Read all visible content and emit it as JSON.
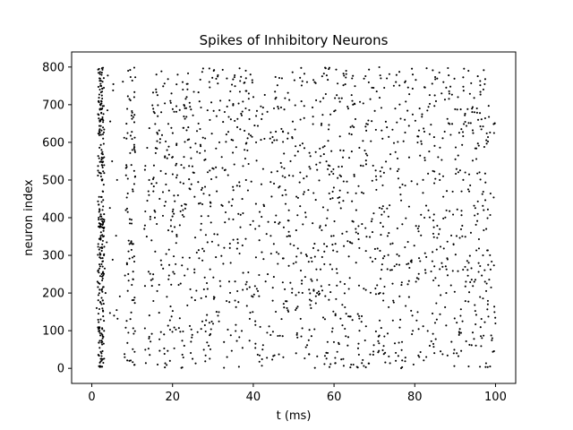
{
  "chart_data": {
    "type": "scatter",
    "title": "Spikes of Inhibitory Neurons",
    "xlabel": "t (ms)",
    "ylabel": "neuron index",
    "xlim": [
      -5,
      105
    ],
    "ylim": [
      -40,
      840
    ],
    "xticks": [
      0,
      20,
      40,
      60,
      80,
      100
    ],
    "yticks": [
      0,
      100,
      200,
      300,
      400,
      500,
      600,
      700,
      800
    ],
    "grid": false,
    "marker_color": "#000000",
    "num_neurons": 800,
    "t_range": [
      0,
      100
    ],
    "series": [
      {
        "x": [
          1.8,
          1.9,
          2.0,
          2.1,
          2.2,
          2.3,
          2.4,
          2.5,
          2.6,
          2.7,
          2.8,
          1.7,
          2.9,
          1.6,
          3.0,
          3.2,
          1.4,
          3.4,
          1.2,
          2.2,
          1.9,
          2.6,
          2.4,
          2.0,
          2.8,
          1.8,
          2.3,
          2.5,
          2.1,
          2.7,
          9.0,
          10.5,
          8.6,
          9.8,
          10.2,
          8.9,
          10.0,
          9.3,
          16.0,
          17.2,
          18.1,
          16.8,
          15.7,
          18.6,
          17.9,
          16.3,
          22.5,
          23.9,
          25.1,
          21.8,
          24.4,
          22.9,
          30.2,
          31.6,
          29.4,
          32.8,
          30.9,
          33.5,
          39.3,
          40.7,
          38.2,
          41.5,
          39.9,
          42.3,
          47.1,
          48.5,
          46.3,
          49.2,
          47.8,
          50.6,
          55.2,
          56.9,
          54.1,
          57.6,
          55.8,
          58.4,
          63.0,
          64.7,
          62.2,
          65.5,
          63.9,
          66.3,
          71.6,
          73.1,
          70.4,
          74.0,
          72.2,
          75.3,
          79.5,
          81.2,
          78.6,
          82.4,
          80.3,
          83.7,
          87.1,
          88.9,
          86.2,
          89.6,
          87.8,
          90.4,
          93.3,
          94.8,
          92.5,
          95.6,
          96.9,
          98.1,
          99.2,
          97.4,
          99.8,
          93.9
        ],
        "y": [
          795,
          770,
          740,
          700,
          660,
          620,
          580,
          540,
          500,
          470,
          430,
          400,
          365,
          330,
          300,
          265,
          230,
          200,
          160,
          130,
          100,
          70,
          40,
          15,
          610,
          520,
          455,
          375,
          245,
          85,
          790,
          720,
          610,
          540,
          470,
          415,
          330,
          20,
          780,
          680,
          560,
          450,
          310,
          190,
          90,
          10,
          760,
          640,
          520,
          380,
          210,
          60,
          790,
          600,
          430,
          320,
          150,
          30,
          780,
          670,
          500,
          340,
          190,
          50,
          770,
          610,
          480,
          330,
          210,
          40,
          760,
          650,
          530,
          310,
          200,
          70,
          790,
          700,
          560,
          420,
          240,
          100,
          770,
          640,
          510,
          330,
          180,
          20,
          780,
          690,
          560,
          400,
          230,
          60,
          760,
          620,
          500,
          330,
          200,
          40,
          790,
          680,
          520,
          410,
          300,
          170,
          80,
          230,
          650,
          360
        ]
      }
    ]
  }
}
